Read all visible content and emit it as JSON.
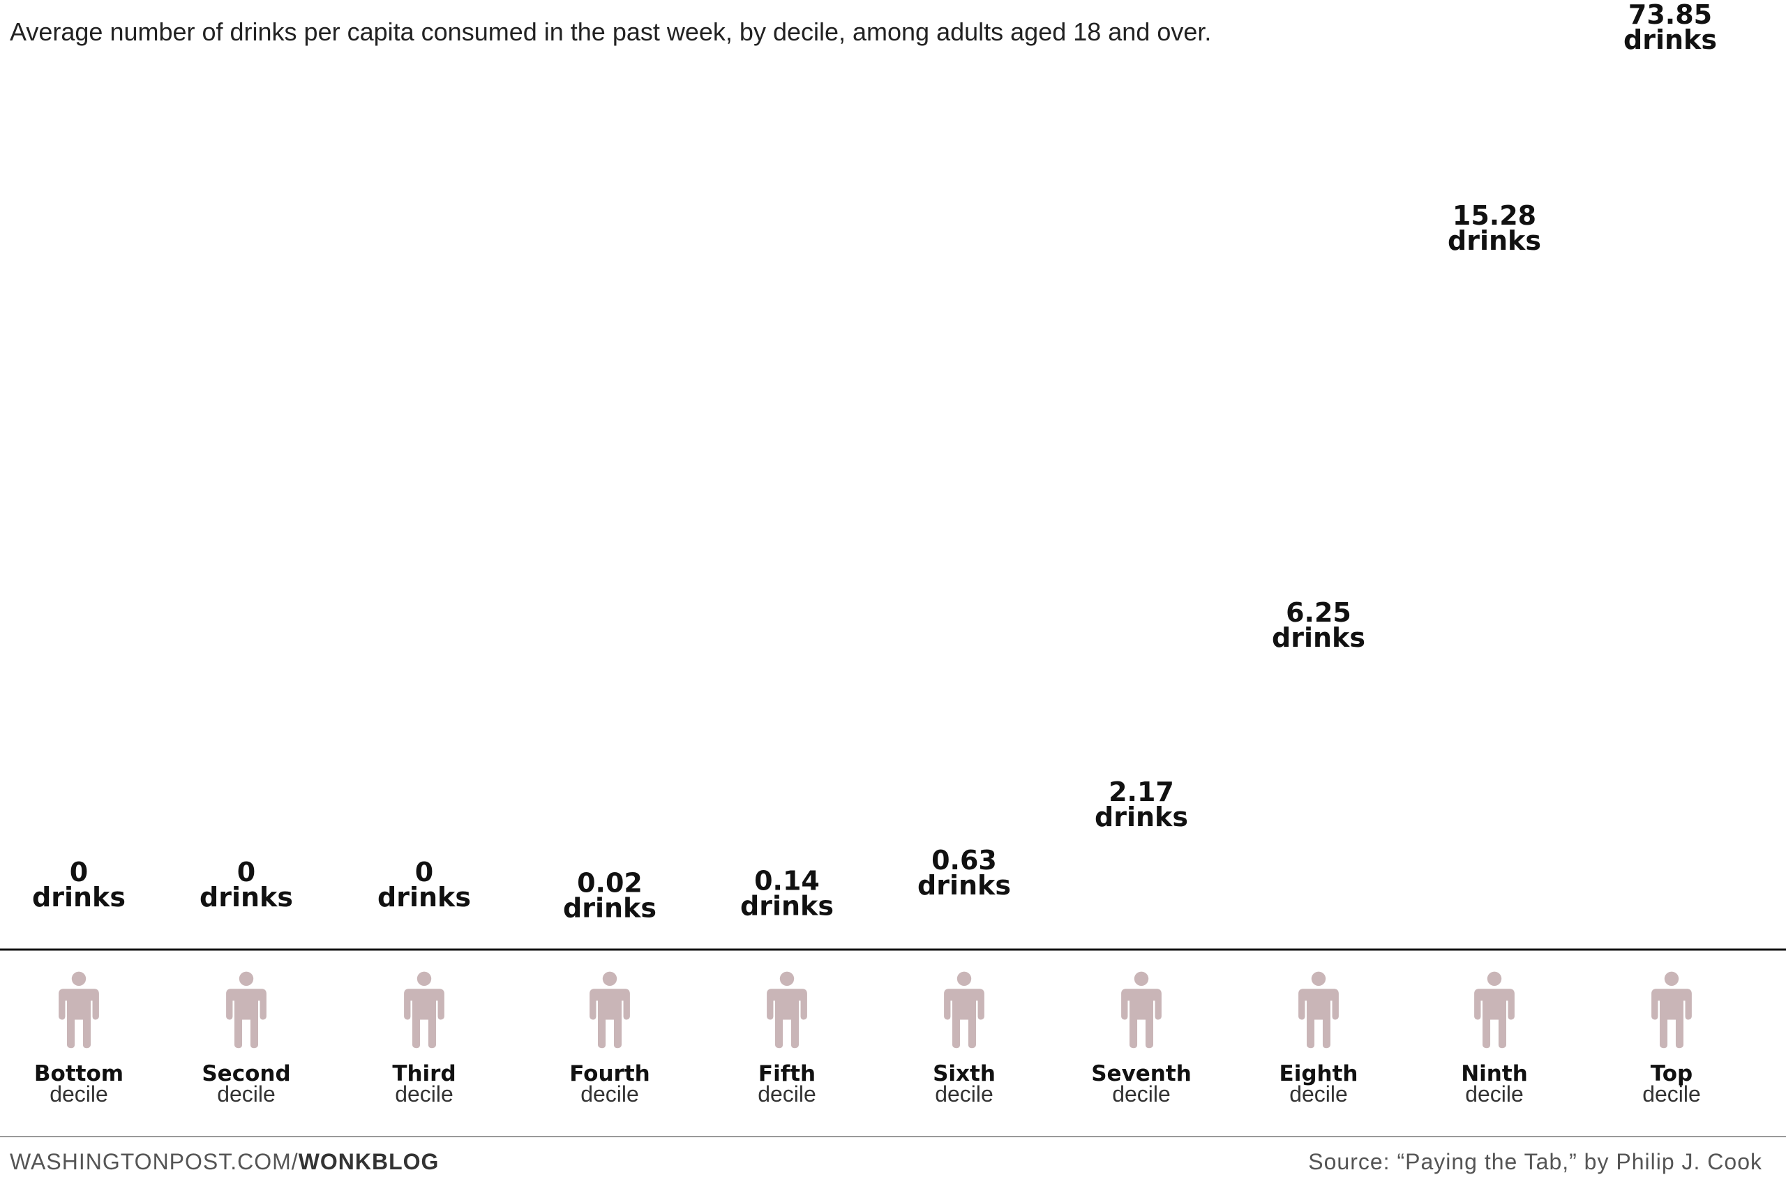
{
  "chart_data": {
    "type": "pictograph",
    "title": "Average number of drinks per capita consumed in the past week, by decile, among adults aged 18 and over.",
    "unit_label": "drinks",
    "category_suffix": "decile",
    "categories": [
      "Bottom",
      "Second",
      "Third",
      "Fourth",
      "Fifth",
      "Sixth",
      "Seventh",
      "Eighth",
      "Ninth",
      "Top"
    ],
    "values": [
      0,
      0,
      0,
      0.02,
      0.14,
      0.63,
      2.17,
      6.25,
      15.28,
      73.85
    ],
    "value_labels": [
      "0",
      "0",
      "0",
      "0.02",
      "0.14",
      "0.63",
      "2.17",
      "6.25",
      "15.28",
      "73.85"
    ],
    "icon_sequence": [
      "martini-glass",
      "wine-glass",
      "beer-glass",
      "beer-mug",
      "beer-bottle"
    ],
    "colors": {
      "martini-glass": "#d6158f",
      "wine-glass": "#d6158f",
      "beer-glass": "#f2b127",
      "beer-mug": "#6cc644",
      "beer-bottle": "#3a3f7a",
      "person": "#c9b5b7",
      "axis": "#111111",
      "divider": "#999999"
    }
  },
  "footer": {
    "site": "WASHINGTONPOST.COM/",
    "section": "WONKBLOG",
    "source": "Source: “Paying the Tab,” by Philip J. Cook"
  }
}
